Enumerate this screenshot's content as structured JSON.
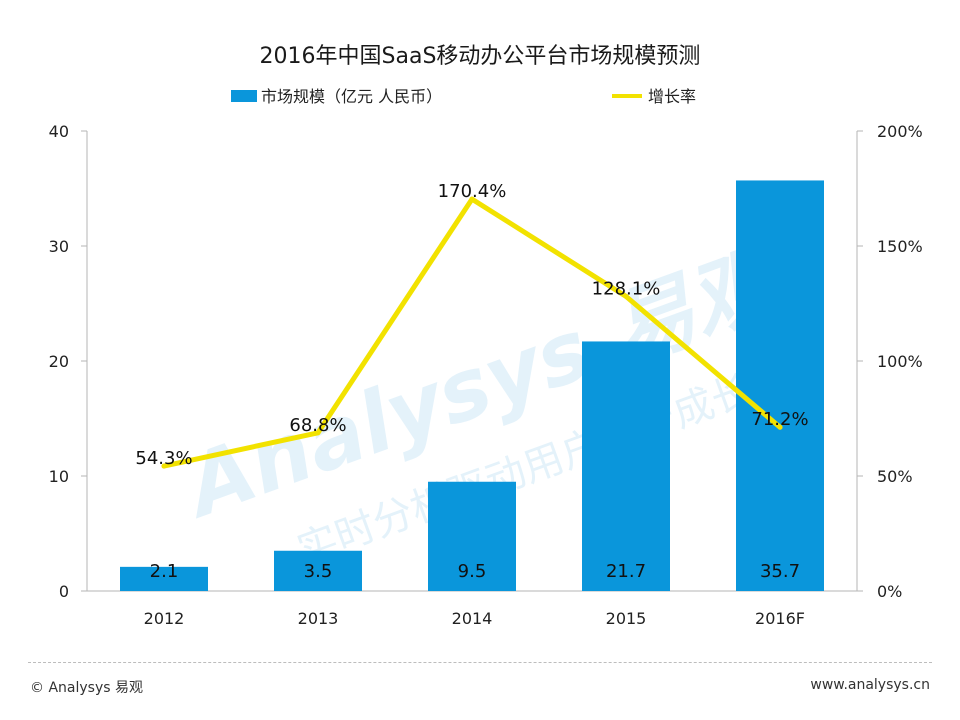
{
  "chart_data": {
    "type": "bar",
    "title": "2016年中国SaaS移动办公平台市场规模预测",
    "categories": [
      "2012",
      "2013",
      "2014",
      "2015",
      "2016F"
    ],
    "series": [
      {
        "name": "市场规模（亿元 人民币）",
        "type": "bar",
        "axis": "left",
        "values": [
          2.1,
          3.5,
          9.5,
          21.7,
          35.7
        ],
        "labels": [
          "2.1",
          "3.5",
          "9.5",
          "21.7",
          "35.7"
        ],
        "color": "#0a96db"
      },
      {
        "name": "增长率",
        "type": "line",
        "axis": "right",
        "values": [
          54.3,
          68.8,
          170.4,
          128.1,
          71.2
        ],
        "labels": [
          "54.3%",
          "68.8%",
          "170.4%",
          "128.1%",
          "71.2%"
        ],
        "color": "#f2e200"
      }
    ],
    "ylim_left": [
      0,
      40
    ],
    "yticks_left": [
      "0",
      "10",
      "20",
      "30",
      "40"
    ],
    "ylim_right": [
      0,
      200
    ],
    "yticks_right": [
      "0%",
      "50%",
      "100%",
      "150%",
      "200%"
    ],
    "legend_position": "top",
    "grid": false
  },
  "watermark": {
    "text_large": "Analysys 易观",
    "text_small": "实时分析驱动用户资产成长"
  },
  "footer": {
    "left": "© Analysys 易观",
    "right": "www.analysys.cn"
  }
}
